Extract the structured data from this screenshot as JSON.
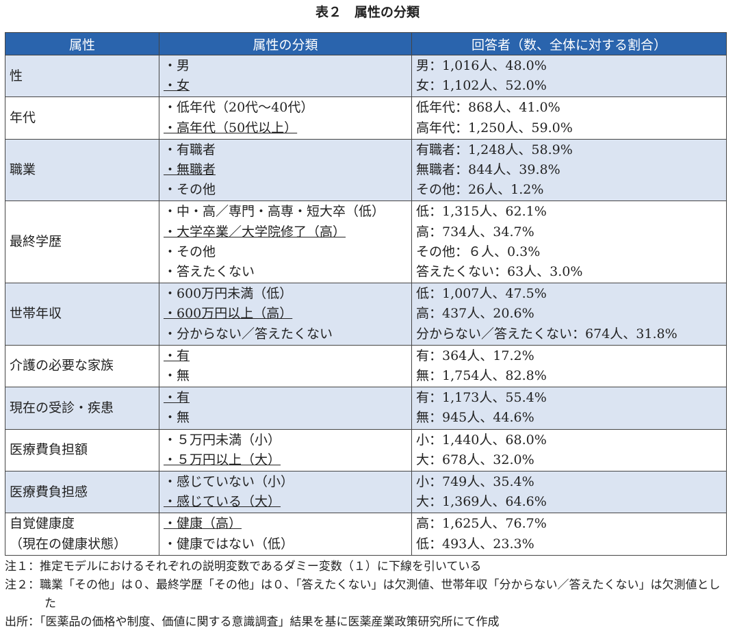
{
  "title": "表２　属性の分類",
  "table": {
    "header": [
      "属性",
      "属性の分類",
      "回答者（数、全体に対する割合）"
    ],
    "rows": [
      {
        "attribute": "性",
        "categories": [
          "・男",
          "・女"
        ],
        "underlined": 1,
        "responses": [
          "男：1,016人、48.0%",
          "女：1,102人、52.0%"
        ]
      },
      {
        "attribute": "年代",
        "categories": [
          "・低年代（20代～40代）",
          "・高年代（50代以上）"
        ],
        "underlined": 1,
        "responses": [
          "低年代：868人、41.0%",
          "高年代：1,250人、59.0%"
        ]
      },
      {
        "attribute": "職業",
        "categories": [
          "・有職者",
          "・無職者",
          "・その他"
        ],
        "underlined": 1,
        "responses": [
          "有職者：1,248人、58.9%",
          "無職者：844人、39.8%",
          "その他：26人、1.2%"
        ]
      },
      {
        "attribute": "最終学歴",
        "categories": [
          "・中・高／専門・高専・短大卒（低）",
          "・大学卒業／大学院修了（高）",
          "・その他",
          "・答えたくない"
        ],
        "underlined": 1,
        "responses": [
          "低：1,315人、62.1%",
          "高：734人、34.7%",
          "その他：６人、0.3%",
          "答えたくない：63人、3.0%"
        ]
      },
      {
        "attribute": "世帯年収",
        "categories": [
          "・600万円未満（低）",
          "・600万円以上（高）",
          "・分からない／答えたくない"
        ],
        "underlined": 1,
        "responses": [
          "低：1,007人、47.5%",
          "高：437人、20.6%",
          "分からない／答えたくない：674人、31.8%"
        ]
      },
      {
        "attribute": "介護の必要な家族",
        "categories": [
          "・有",
          "・無"
        ],
        "underlined": 0,
        "responses": [
          "有：364人、17.2%",
          "無：1,754人、82.8%"
        ]
      },
      {
        "attribute": "現在の受診・疾患",
        "categories": [
          "・有",
          "・無"
        ],
        "underlined": 0,
        "responses": [
          "有：1,173人、55.4%",
          "無：945人、44.6%"
        ]
      },
      {
        "attribute": "医療費負担額",
        "categories": [
          "・５万円未満（小）",
          "・５万円以上（大）"
        ],
        "underlined": 1,
        "responses": [
          "小：1,440人、68.0%",
          "大：678人、32.0%"
        ]
      },
      {
        "attribute": "医療費負担感",
        "categories": [
          "・感じていない（小）",
          "・感じている（大）"
        ],
        "underlined": 1,
        "responses": [
          "小：749人、35.4%",
          "大：1,369人、64.6%"
        ]
      },
      {
        "attribute": "自覚健康度\n（現在の健康状態）",
        "categories": [
          "・健康（高）",
          "・健康ではない（低）"
        ],
        "underlined": 0,
        "responses": [
          "高：1,625人、76.7%",
          "低：493人、23.3%"
        ]
      }
    ]
  },
  "notes": [
    "注１：推定モデルにおけるそれぞれの説明変数であるダミー変数（１）に下線を引いている",
    "注２：職業「その他」は０、最終学歴「その他」は０、「答えたくない」は欠測値、世帯年収「分からない／答えたくない」は欠測値とした"
  ],
  "source": "出所：「医薬品の価格や制度、価値に関する意識調査」結果を基に医薬産業政策研究所にて作成"
}
